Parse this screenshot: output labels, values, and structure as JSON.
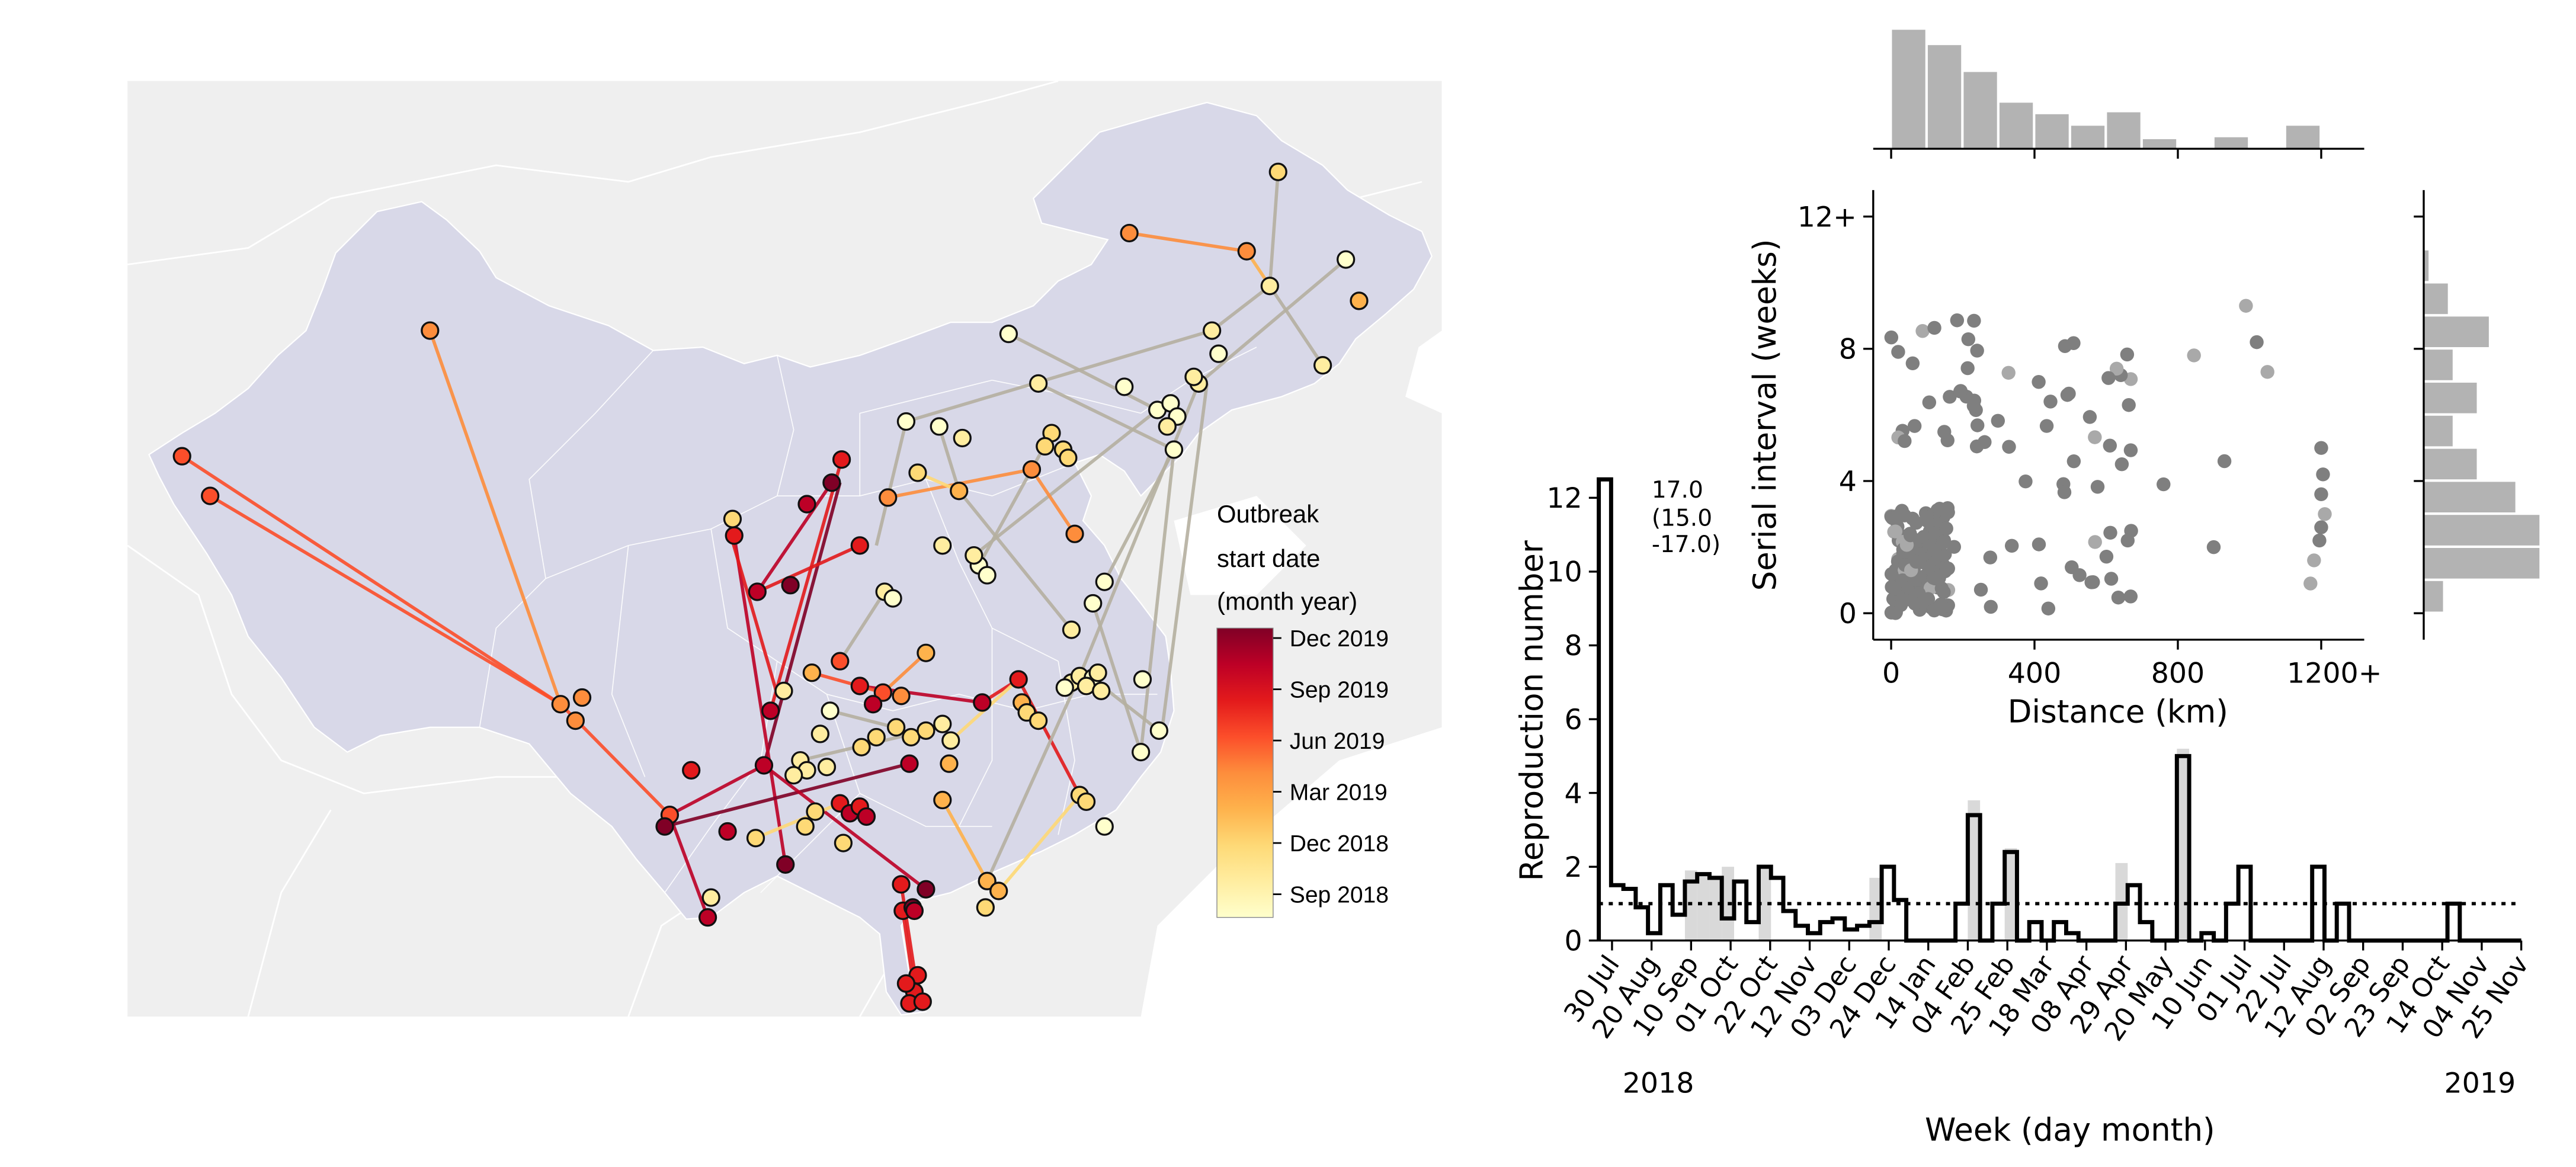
{
  "map": {
    "legend_title": [
      "Outbreak",
      "start date",
      "(month year)"
    ],
    "colorbar_ticks": [
      "Dec 2019",
      "Sep 2019",
      "Jun 2019",
      "Mar 2019",
      "Dec 2018",
      "Sep 2018"
    ],
    "colors": {
      "land": "#efefef",
      "china": "#d8d8e8",
      "sea": "#ffffff",
      "border": "#ffffff"
    },
    "colormap": [
      "#ffffcc",
      "#ffeda0",
      "#fed976",
      "#feb24c",
      "#fd8d3c",
      "#fc4e2a",
      "#e31a1c",
      "#bd0026",
      "#800026"
    ]
  },
  "chart_data": [
    {
      "type": "line",
      "subtype": "step",
      "xlabel": "Week (day month)",
      "ylabel": "Reproduction number",
      "ylim": [
        0,
        12.5
      ],
      "yticks": [
        0,
        2,
        4,
        6,
        8,
        10,
        12
      ],
      "week_labels": [
        "30 Jul",
        "20 Aug",
        "10 Sep",
        "01 Oct",
        "22 Oct",
        "12 Nov",
        "03 Dec",
        "24 Dec",
        "14 Jan",
        "04 Feb",
        "25 Feb",
        "18 Mar",
        "08 Apr",
        "29 Apr",
        "20 May",
        "10 Jun",
        "01 Jul",
        "22 Jul",
        "12 Aug",
        "02 Sep",
        "23 Sep",
        "14 Oct",
        "04 Nov",
        "25 Nov"
      ],
      "year_labels": [
        "2018",
        "2019"
      ],
      "reference_line": 1.0,
      "annotation": [
        "17.0",
        "(15.0",
        "-17.0)"
      ],
      "R_weekly": [
        17.0,
        1.5,
        1.4,
        0.9,
        0.2,
        1.5,
        0.7,
        1.6,
        1.8,
        1.7,
        0.6,
        1.6,
        0.5,
        2.0,
        1.7,
        0.8,
        0.4,
        0.2,
        0.5,
        0.6,
        0.3,
        0.4,
        0.5,
        2.0,
        1.1,
        0,
        0,
        0,
        0,
        1.0,
        3.4,
        0,
        1.0,
        2.4,
        0,
        0.5,
        0,
        0.5,
        0.2,
        0,
        0,
        0,
        1.0,
        1.5,
        0.5,
        0,
        0,
        5.0,
        0,
        0.2,
        0,
        1.0,
        2.0,
        0,
        0,
        0,
        0,
        0,
        2.0,
        0,
        1.0,
        0,
        0,
        0,
        0,
        0,
        0,
        0,
        0,
        1.0,
        0,
        0,
        0,
        0,
        0
      ],
      "ci_weeks": [
        7,
        8,
        9,
        10,
        13,
        22,
        30,
        33,
        42,
        47
      ],
      "ci_upper": [
        1.9,
        1.8,
        1.7,
        2.0,
        2.0,
        1.7,
        3.8,
        2.5,
        2.1,
        5.2
      ]
    },
    {
      "type": "scatter",
      "xlabel": "Distance (km)",
      "ylabel": "Serial interval (weeks)",
      "xlim": [
        -50,
        1320
      ],
      "ylim": [
        -0.8,
        12.8
      ],
      "xticks": [
        "0",
        "400",
        "800",
        "1200+"
      ],
      "yticks": [
        "0",
        "4",
        "8",
        "12+"
      ],
      "dot_color": "#7f7f7f",
      "faint_dot_color": "#a9a9a9",
      "hist_color": "#b3b3b3",
      "distance_histogram": {
        "bin_width_km": 100,
        "counts": [
          62,
          54,
          40,
          24,
          18,
          12,
          19,
          5,
          0,
          6,
          0,
          12
        ]
      },
      "interval_histogram": {
        "bin_width_weeks": 1,
        "counts": [
          8,
          48,
          48,
          38,
          22,
          12,
          22,
          12,
          27,
          10,
          2
        ]
      }
    }
  ]
}
